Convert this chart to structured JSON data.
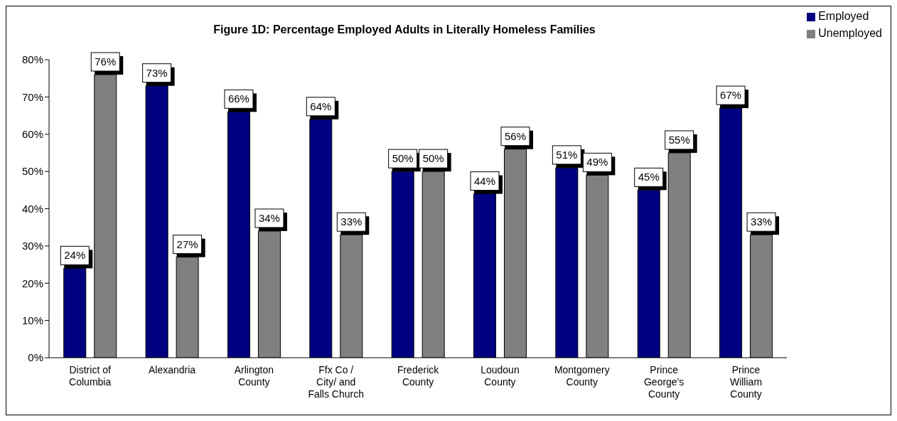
{
  "chart_data": {
    "type": "bar",
    "title": "Figure 1D: Percentage Employed Adults in Literally Homeless Families",
    "categories": [
      "District of Columbia",
      "Alexandria",
      "Arlington County",
      "Ffx Co / City/ and Falls Church",
      "Frederick County",
      "Loudoun County",
      "Montgomery County",
      "Prince George's County",
      "Prince William County"
    ],
    "series": [
      {
        "name": "Employed",
        "color": "#000080",
        "values": [
          24,
          73,
          66,
          64,
          50,
          44,
          51,
          45,
          67
        ],
        "value_labels": [
          "24%",
          "73%",
          "66%",
          "64%",
          "50%",
          "44%",
          "51%",
          "45%",
          "67%"
        ]
      },
      {
        "name": "Unemployed",
        "color": "#808080",
        "values": [
          76,
          27,
          34,
          33,
          50,
          56,
          49,
          55,
          33
        ],
        "value_labels": [
          "76%",
          "27%",
          "34%",
          "33%",
          "50%",
          "56%",
          "49%",
          "55%",
          "33%"
        ]
      }
    ],
    "ylim": [
      0,
      80
    ],
    "yticks": [
      {
        "value": 0,
        "label": "0%"
      },
      {
        "value": 10,
        "label": "10%"
      },
      {
        "value": 20,
        "label": "20%"
      },
      {
        "value": 30,
        "label": "30%"
      },
      {
        "value": 40,
        "label": "40%"
      },
      {
        "value": 50,
        "label": "50%"
      },
      {
        "value": 60,
        "label": "60%"
      },
      {
        "value": 70,
        "label": "70%"
      },
      {
        "value": 80,
        "label": "80%"
      }
    ],
    "grid": false,
    "legend": "top right"
  }
}
